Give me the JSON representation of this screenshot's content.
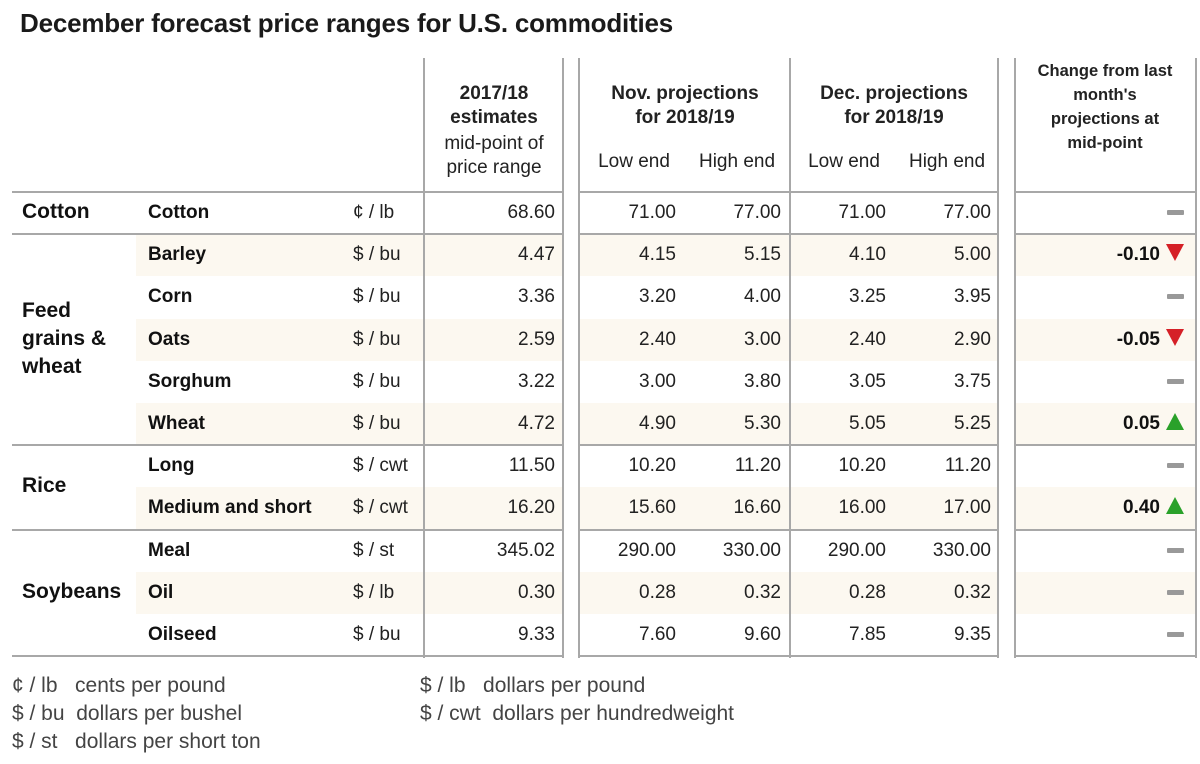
{
  "title": "December forecast price ranges for U.S. commodities",
  "headers": {
    "est_title_line1": "2017/18",
    "est_title_line2": "estimates",
    "est_sub_line1": "mid-point of",
    "est_sub_line2": "price range",
    "nov_title_line1": "Nov. projections",
    "nov_title_line2": "for 2018/19",
    "dec_title_line1": "Dec. projections",
    "dec_title_line2": "for 2018/19",
    "low_end": "Low end",
    "high_end": "High end",
    "change_line1": "Change from last",
    "change_line2": "month's",
    "change_line3": "projections at",
    "change_line4": "mid-point"
  },
  "categories": [
    {
      "name_lines": [
        "Cotton"
      ]
    },
    {
      "name_lines": [
        "Feed",
        "grains &",
        "wheat"
      ]
    },
    {
      "name_lines": [
        "Rice"
      ]
    },
    {
      "name_lines": [
        "Soybeans"
      ]
    }
  ],
  "rows": [
    {
      "item": "Cotton",
      "unit": "¢ / lb",
      "est": "68.60",
      "nov_low": "71.00",
      "nov_high": "77.00",
      "dec_low": "71.00",
      "dec_high": "77.00",
      "change": "",
      "direction": "none"
    },
    {
      "item": "Barley",
      "unit": "$ / bu",
      "est": "4.47",
      "nov_low": "4.15",
      "nov_high": "5.15",
      "dec_low": "4.10",
      "dec_high": "5.00",
      "change": "-0.10",
      "direction": "down"
    },
    {
      "item": "Corn",
      "unit": "$ / bu",
      "est": "3.36",
      "nov_low": "3.20",
      "nov_high": "4.00",
      "dec_low": "3.25",
      "dec_high": "3.95",
      "change": "",
      "direction": "none"
    },
    {
      "item": "Oats",
      "unit": "$ / bu",
      "est": "2.59",
      "nov_low": "2.40",
      "nov_high": "3.00",
      "dec_low": "2.40",
      "dec_high": "2.90",
      "change": "-0.05",
      "direction": "down"
    },
    {
      "item": "Sorghum",
      "unit": "$ / bu",
      "est": "3.22",
      "nov_low": "3.00",
      "nov_high": "3.80",
      "dec_low": "3.05",
      "dec_high": "3.75",
      "change": "",
      "direction": "none"
    },
    {
      "item": "Wheat",
      "unit": "$ / bu",
      "est": "4.72",
      "nov_low": "4.90",
      "nov_high": "5.30",
      "dec_low": "5.05",
      "dec_high": "5.25",
      "change": "0.05",
      "direction": "up"
    },
    {
      "item": "Long",
      "unit": "$ / cwt",
      "est": "11.50",
      "nov_low": "10.20",
      "nov_high": "11.20",
      "dec_low": "10.20",
      "dec_high": "11.20",
      "change": "",
      "direction": "none"
    },
    {
      "item": "Medium and short",
      "unit": "$ / cwt",
      "est": "16.20",
      "nov_low": "15.60",
      "nov_high": "16.60",
      "dec_low": "16.00",
      "dec_high": "17.00",
      "change": "0.40",
      "direction": "up"
    },
    {
      "item": "Meal",
      "unit": "$ / st",
      "est": "345.02",
      "nov_low": "290.00",
      "nov_high": "330.00",
      "dec_low": "290.00",
      "dec_high": "330.00",
      "change": "",
      "direction": "none"
    },
    {
      "item": "Oil",
      "unit": "$ / lb",
      "est": "0.30",
      "nov_low": "0.28",
      "nov_high": "0.32",
      "dec_low": "0.28",
      "dec_high": "0.32",
      "change": "",
      "direction": "none"
    },
    {
      "item": "Oilseed",
      "unit": "$ / bu",
      "est": "9.33",
      "nov_low": "7.60",
      "nov_high": "9.60",
      "dec_low": "7.85",
      "dec_high": "9.35",
      "change": "",
      "direction": "none"
    }
  ],
  "legend": [
    {
      "abbr": "¢ / lb",
      "meaning": "cents per pound"
    },
    {
      "abbr": "$ / bu",
      "meaning": "dollars per bushel"
    },
    {
      "abbr": "$ / st",
      "meaning": "dollars per short ton"
    },
    {
      "abbr": "$ / lb",
      "meaning": "dollars per pound"
    },
    {
      "abbr": "$ / cwt",
      "meaning": "dollars per hundredweight"
    }
  ],
  "colors": {
    "stripe": "#fcf8f0",
    "rule": "#a8a8a8",
    "down": "#d52027",
    "up": "#2aa12a",
    "unchanged": "#999999"
  }
}
